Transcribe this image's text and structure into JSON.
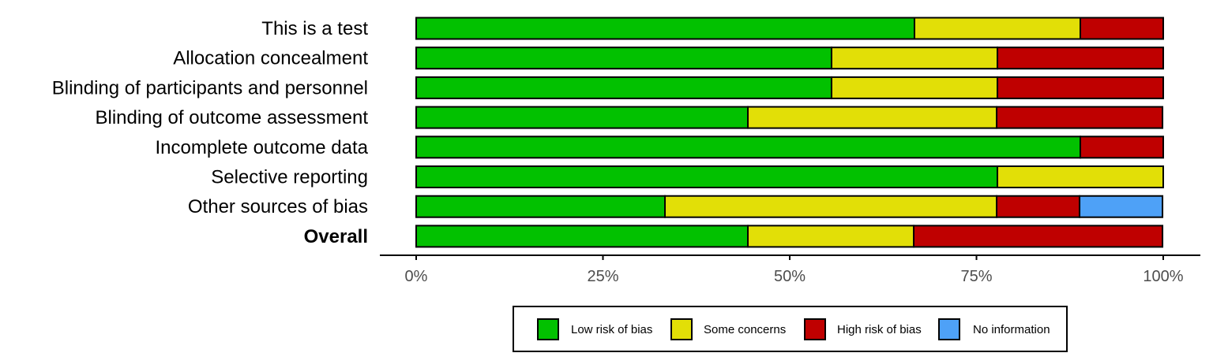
{
  "chart_data": {
    "type": "bar",
    "orientation": "horizontal",
    "stacked": true,
    "title": "",
    "xlabel": "",
    "ylabel": "",
    "xlim": [
      0,
      100
    ],
    "x_ticks": [
      "0%",
      "25%",
      "50%",
      "75%",
      "100%"
    ],
    "x_tick_values": [
      0,
      25,
      50,
      75,
      100
    ],
    "categories": [
      "This is a test",
      "Allocation concealment",
      "Blinding of participants and personnel",
      "Blinding of outcome assessment",
      "Incomplete outcome data",
      "Selective reporting",
      "Other sources of bias",
      "Overall"
    ],
    "bold_categories": [
      "Overall"
    ],
    "series": [
      {
        "name": "Low risk of bias",
        "color": "#02C100",
        "values": [
          66.7,
          55.6,
          55.6,
          44.4,
          88.9,
          77.8,
          33.3,
          44.4
        ]
      },
      {
        "name": "Some concerns",
        "color": "#E2DF07",
        "values": [
          22.2,
          22.2,
          22.2,
          33.3,
          0,
          22.2,
          44.4,
          22.2
        ]
      },
      {
        "name": "High risk of bias",
        "color": "#BF0000",
        "values": [
          11.1,
          22.2,
          22.2,
          22.2,
          11.1,
          0,
          11.1,
          33.3
        ]
      },
      {
        "name": "No information",
        "color": "#4EA1F7",
        "values": [
          0,
          0,
          0,
          0,
          0,
          0,
          11.1,
          0
        ]
      }
    ],
    "grid": false,
    "legend_position": "bottom"
  }
}
